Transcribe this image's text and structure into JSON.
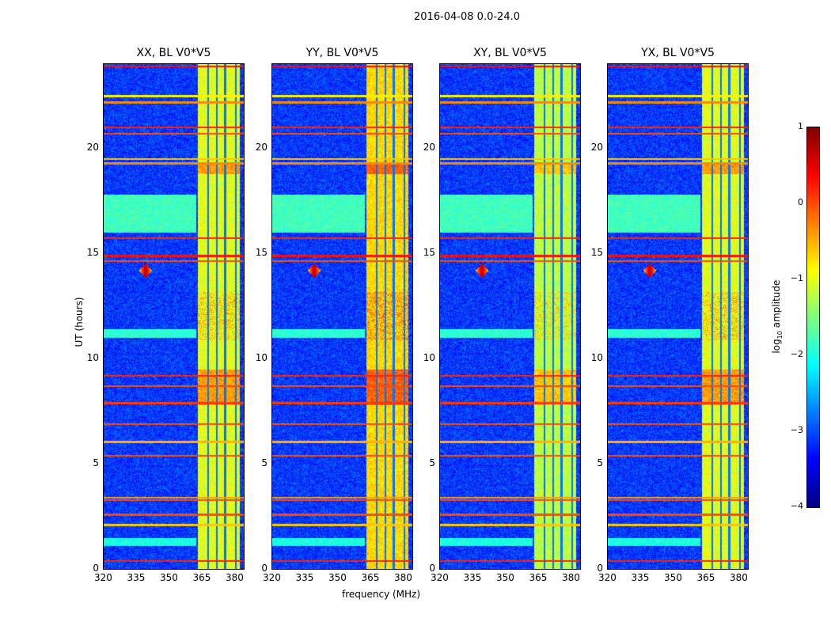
{
  "chart_data": {
    "type": "heatmap",
    "title": "2016-04-08 0.0-24.0",
    "xlabel": "frequency (MHz)",
    "ylabel": "UT (hours)",
    "xlim": [
      320,
      384
    ],
    "ylim": [
      0,
      24
    ],
    "xticks": [
      "320",
      "335",
      "350",
      "365",
      "380"
    ],
    "xtick_values": [
      320,
      335,
      350,
      365,
      380
    ],
    "yticks": [
      "0",
      "5",
      "10",
      "15",
      "20"
    ],
    "ytick_values": [
      0,
      5,
      10,
      15,
      20
    ],
    "panels": [
      {
        "title": "XX, BL V0*V5",
        "band_strength": 0.0
      },
      {
        "title": "YY, BL V0*V5",
        "band_strength": 0.3
      },
      {
        "title": "XY, BL V0*V5",
        "band_strength": -0.2
      },
      {
        "title": "YX, BL V0*V5",
        "band_strength": 0.0
      }
    ],
    "colorbar": {
      "label_main": "log",
      "label_sub": "10",
      "label_rest": " amplitude",
      "colormap": "jet",
      "range": [
        -4,
        1
      ],
      "ticks": [
        "−4",
        "−3",
        "−2",
        "−1",
        "0",
        "1"
      ],
      "tick_values": [
        -4,
        -3,
        -2,
        -1,
        0,
        1
      ]
    },
    "rfi_band_mhz": [
      363,
      382
    ],
    "rfi_gap_mhz": [
      367.5,
      371.5,
      375.3,
      380.2
    ],
    "rfi_lines_hours": [
      {
        "h": 23.9,
        "v": 0.3
      },
      {
        "h": 22.5,
        "v": -0.8
      },
      {
        "h": 22.2,
        "v": -0.3
      },
      {
        "h": 21.0,
        "v": 0.2
      },
      {
        "h": 20.7,
        "v": 0.0
      },
      {
        "h": 19.5,
        "v": -0.6
      },
      {
        "h": 19.3,
        "v": -0.3
      },
      {
        "h": 15.75,
        "v": 0.2
      },
      {
        "h": 14.9,
        "v": 0.3
      },
      {
        "h": 14.65,
        "v": 0.0
      },
      {
        "h": 9.2,
        "v": 0.2
      },
      {
        "h": 8.7,
        "v": 0.0
      },
      {
        "h": 7.9,
        "v": 0.1
      },
      {
        "h": 6.9,
        "v": 0.0
      },
      {
        "h": 6.05,
        "v": -0.5
      },
      {
        "h": 5.4,
        "v": 0.0
      },
      {
        "h": 3.4,
        "v": -0.4
      },
      {
        "h": 3.3,
        "v": 0.0
      },
      {
        "h": 2.6,
        "v": 0.0
      },
      {
        "h": 2.1,
        "v": -0.6
      },
      {
        "h": 0.4,
        "v": 0.2
      }
    ],
    "broadband_hours": [
      [
        16.0,
        17.8,
        -1.8
      ],
      [
        11.0,
        11.4,
        -1.9
      ],
      [
        1.1,
        1.5,
        -2.0
      ]
    ],
    "spike": {
      "freq": 339,
      "hour": 14.2,
      "value": 0.8
    }
  }
}
